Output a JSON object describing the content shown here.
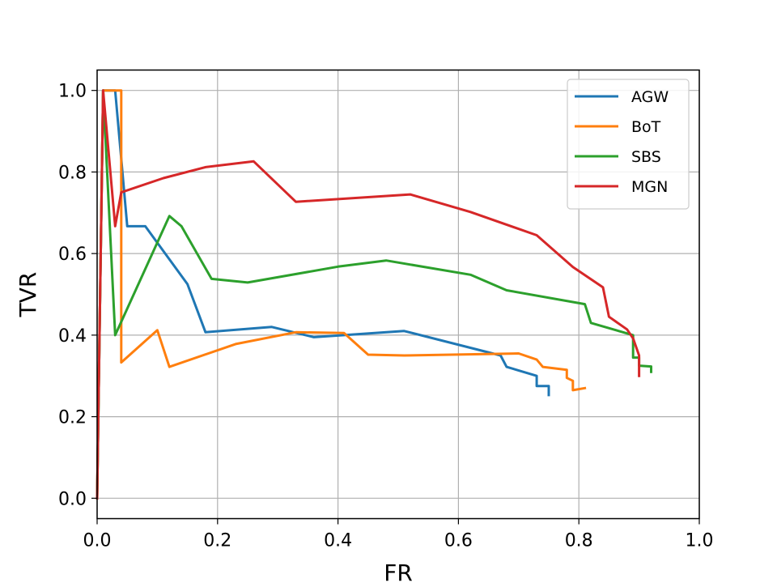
{
  "chart_data": {
    "type": "line",
    "title": "",
    "xlabel": "FR",
    "ylabel": "TVR",
    "xlim": [
      0,
      1
    ],
    "ylim": [
      -0.05,
      1.05
    ],
    "xticks": [
      "0.0",
      "0.2",
      "0.4",
      "0.6",
      "0.8",
      "1.0"
    ],
    "yticks": [
      "0.0",
      "0.2",
      "0.4",
      "0.6",
      "0.8",
      "1.0"
    ],
    "grid": true,
    "legend_position": "top-right",
    "series": [
      {
        "name": "AGW",
        "color": "#1f77b4",
        "points": [
          [
            0,
            0
          ],
          [
            0.01,
            1.0
          ],
          [
            0.03,
            1.0
          ],
          [
            0.05,
            0.667
          ],
          [
            0.08,
            0.667
          ],
          [
            0.15,
            0.525
          ],
          [
            0.18,
            0.407
          ],
          [
            0.29,
            0.42
          ],
          [
            0.36,
            0.395
          ],
          [
            0.41,
            0.4
          ],
          [
            0.51,
            0.41
          ],
          [
            0.67,
            0.35
          ],
          [
            0.68,
            0.322
          ],
          [
            0.73,
            0.3
          ],
          [
            0.73,
            0.275
          ],
          [
            0.75,
            0.275
          ],
          [
            0.75,
            0.253
          ]
        ]
      },
      {
        "name": "BoT",
        "color": "#ff7f0e",
        "points": [
          [
            0,
            0
          ],
          [
            0.01,
            1.0
          ],
          [
            0.04,
            1.0
          ],
          [
            0.04,
            0.333
          ],
          [
            0.1,
            0.412
          ],
          [
            0.12,
            0.322
          ],
          [
            0.23,
            0.378
          ],
          [
            0.33,
            0.407
          ],
          [
            0.41,
            0.405
          ],
          [
            0.45,
            0.352
          ],
          [
            0.51,
            0.35
          ],
          [
            0.7,
            0.355
          ],
          [
            0.73,
            0.34
          ],
          [
            0.74,
            0.322
          ],
          [
            0.78,
            0.315
          ],
          [
            0.78,
            0.295
          ],
          [
            0.79,
            0.288
          ],
          [
            0.79,
            0.265
          ],
          [
            0.81,
            0.27
          ]
        ]
      },
      {
        "name": "SBS",
        "color": "#2ca02c",
        "points": [
          [
            0,
            0
          ],
          [
            0.01,
            1.0
          ],
          [
            0.03,
            0.4
          ],
          [
            0.12,
            0.692
          ],
          [
            0.14,
            0.667
          ],
          [
            0.19,
            0.538
          ],
          [
            0.25,
            0.529
          ],
          [
            0.4,
            0.568
          ],
          [
            0.48,
            0.583
          ],
          [
            0.62,
            0.548
          ],
          [
            0.68,
            0.51
          ],
          [
            0.81,
            0.476
          ],
          [
            0.82,
            0.43
          ],
          [
            0.89,
            0.4
          ],
          [
            0.89,
            0.345
          ],
          [
            0.9,
            0.345
          ],
          [
            0.9,
            0.325
          ],
          [
            0.92,
            0.323
          ],
          [
            0.92,
            0.31
          ]
        ]
      },
      {
        "name": "MGN",
        "color": "#d62728",
        "points": [
          [
            0,
            0
          ],
          [
            0.01,
            1.0
          ],
          [
            0.03,
            0.667
          ],
          [
            0.04,
            0.75
          ],
          [
            0.11,
            0.785
          ],
          [
            0.18,
            0.812
          ],
          [
            0.26,
            0.826
          ],
          [
            0.33,
            0.727
          ],
          [
            0.52,
            0.745
          ],
          [
            0.62,
            0.702
          ],
          [
            0.73,
            0.645
          ],
          [
            0.79,
            0.567
          ],
          [
            0.84,
            0.517
          ],
          [
            0.85,
            0.445
          ],
          [
            0.88,
            0.414
          ],
          [
            0.89,
            0.392
          ],
          [
            0.9,
            0.35
          ],
          [
            0.9,
            0.3
          ]
        ]
      }
    ]
  }
}
